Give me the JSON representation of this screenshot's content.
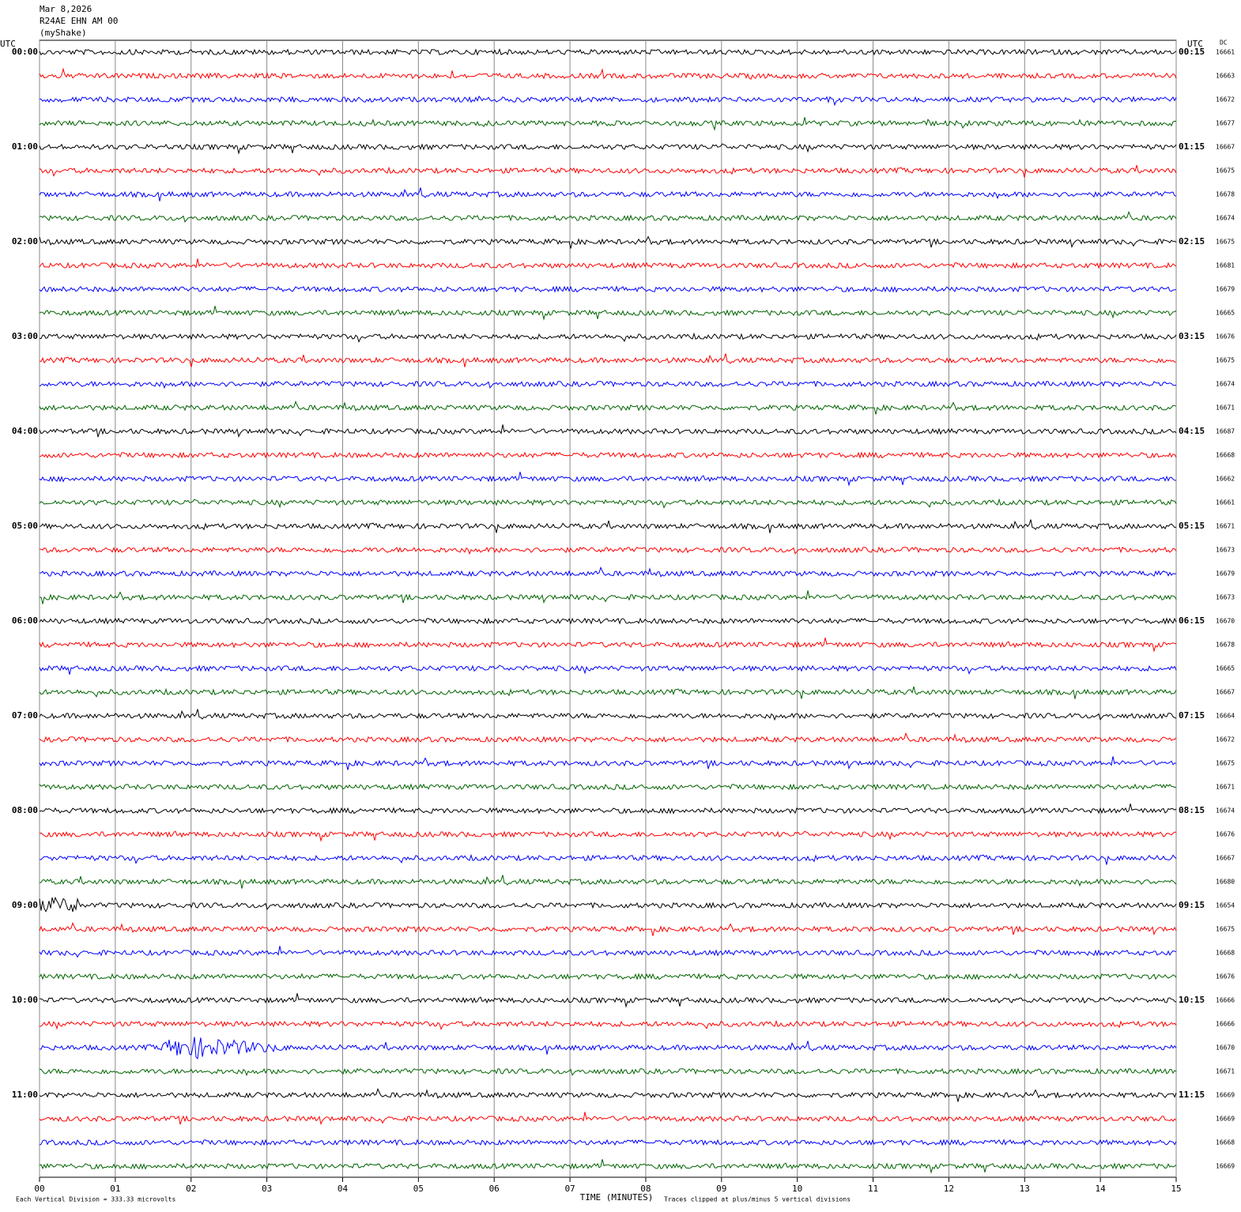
{
  "header": {
    "date": "Mar 8,2026",
    "station": "R24AE EHN AM 00",
    "network": "(myShake)"
  },
  "chart_data": {
    "type": "helicorder",
    "left_axis_label": "UTC",
    "right_axis_label": "UTC",
    "dc_label": "DC",
    "left_times": [
      "00:00",
      "01:00",
      "02:00",
      "03:00",
      "04:00",
      "05:00",
      "06:00",
      "07:00",
      "08:00",
      "09:00",
      "10:00",
      "11:00"
    ],
    "right_times": [
      "00:15",
      "01:15",
      "02:15",
      "03:15",
      "04:15",
      "05:15",
      "06:15",
      "07:15",
      "08:15",
      "09:15",
      "10:15",
      "11:15"
    ],
    "dc_values": [
      16661,
      16663,
      16672,
      16677,
      16667,
      16675,
      16678,
      16674,
      16675,
      16681,
      16679,
      16665,
      16676,
      16675,
      16674,
      16671,
      16687,
      16668,
      16662,
      16661,
      16671,
      16673,
      16679,
      16673,
      16670,
      16678,
      16665,
      16667,
      16664,
      16672,
      16675,
      16671,
      16674,
      16676,
      16667,
      16680,
      16654,
      16675,
      16668,
      16676,
      16666,
      16666,
      16670,
      16671,
      16669,
      16669,
      16668,
      16669
    ],
    "trace_colors": [
      "#000000",
      "#ff0000",
      "#0000ff",
      "#006400"
    ],
    "xlim": [
      0,
      15
    ],
    "xticks": [
      {
        "value": 0,
        "label": "00"
      },
      {
        "value": 1,
        "label": "01"
      },
      {
        "value": 2,
        "label": "02"
      },
      {
        "value": 3,
        "label": "03"
      },
      {
        "value": 4,
        "label": "04"
      },
      {
        "value": 5,
        "label": "05"
      },
      {
        "value": 6,
        "label": "06"
      },
      {
        "value": 7,
        "label": "07"
      },
      {
        "value": 8,
        "label": "08"
      },
      {
        "value": 9,
        "label": "09"
      },
      {
        "value": 10,
        "label": "10"
      },
      {
        "value": 11,
        "label": "11"
      },
      {
        "value": 12,
        "label": "12"
      },
      {
        "value": 13,
        "label": "13"
      },
      {
        "value": 14,
        "label": "14"
      },
      {
        "value": 15,
        "label": "15"
      }
    ],
    "xlabel": "TIME (MINUTES)",
    "scale_note": "Each Vertical Division =  333.33 microvolts",
    "clip_note": "Traces clipped at plus/minus 5 vertical divisions"
  }
}
